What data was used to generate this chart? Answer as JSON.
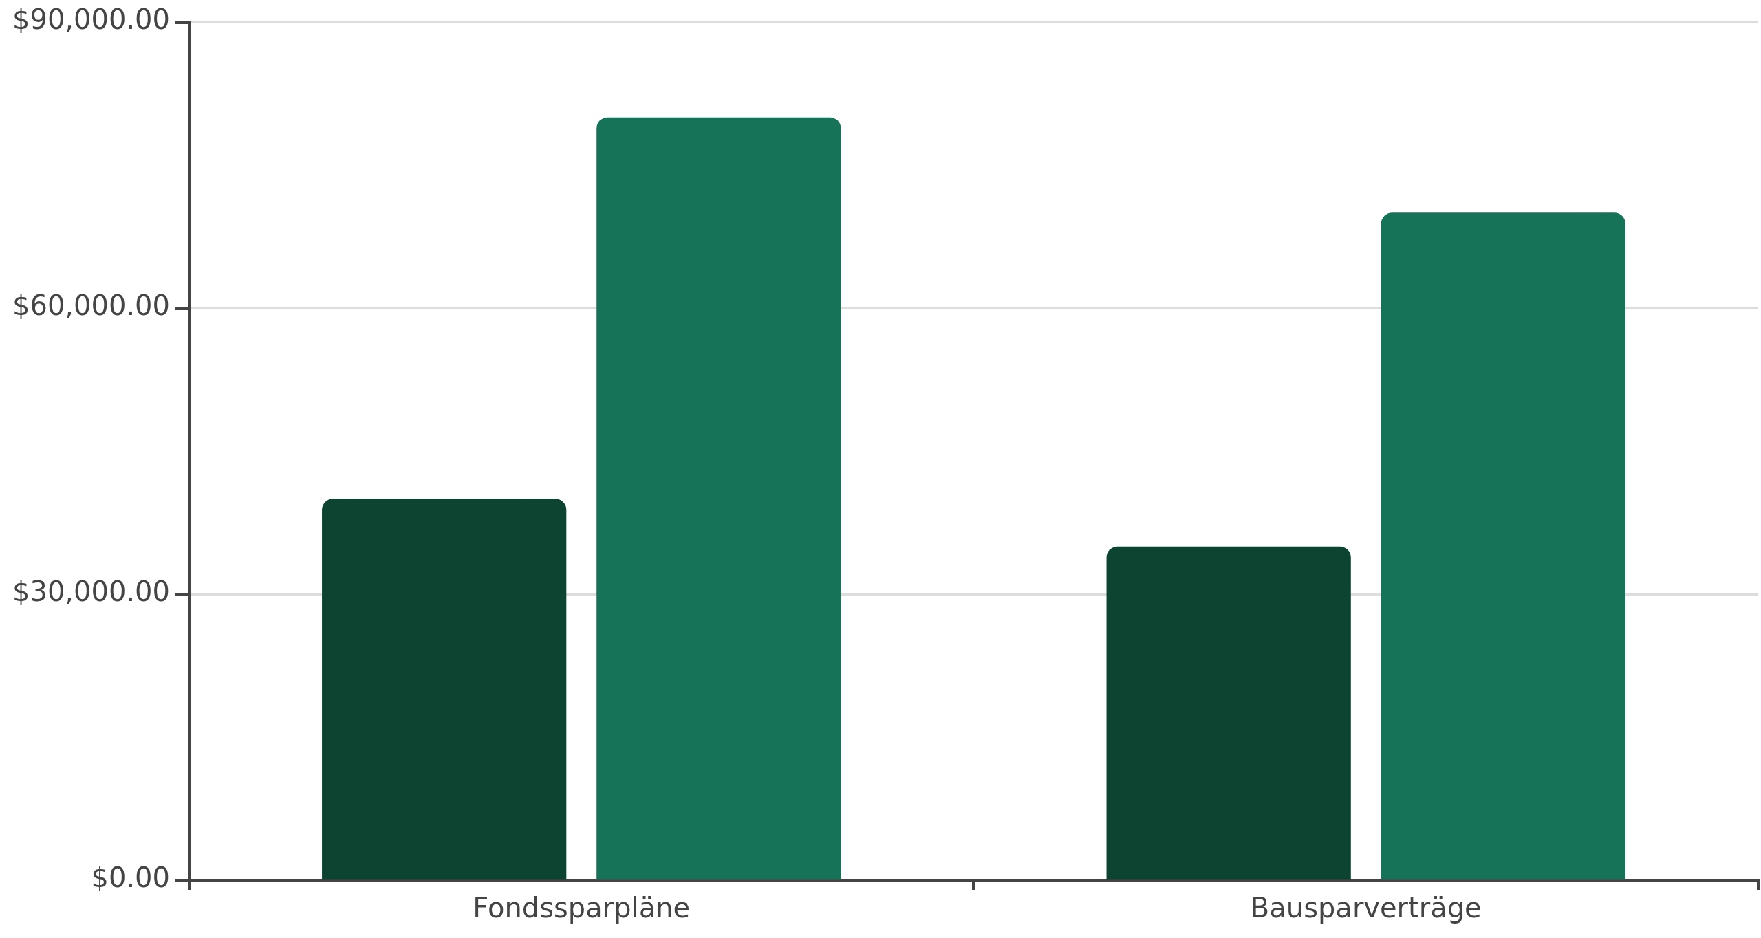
{
  "chart_data": {
    "type": "bar",
    "categories": [
      "Fondssparpläne",
      "Bausparverträge"
    ],
    "series": [
      {
        "color": "#0d4331",
        "values": [
          40000,
          35000
        ]
      },
      {
        "color": "#177357",
        "values": [
          80000,
          70000
        ]
      }
    ],
    "ylim": [
      0,
      90000
    ],
    "yticks": [
      {
        "value": 0,
        "label": "$0.00"
      },
      {
        "value": 30000,
        "label": "$30,000.00"
      },
      {
        "value": 60000,
        "label": "$60,000.00"
      },
      {
        "value": 90000,
        "label": "$90,000.00"
      }
    ],
    "grid": "y",
    "legend": false
  }
}
